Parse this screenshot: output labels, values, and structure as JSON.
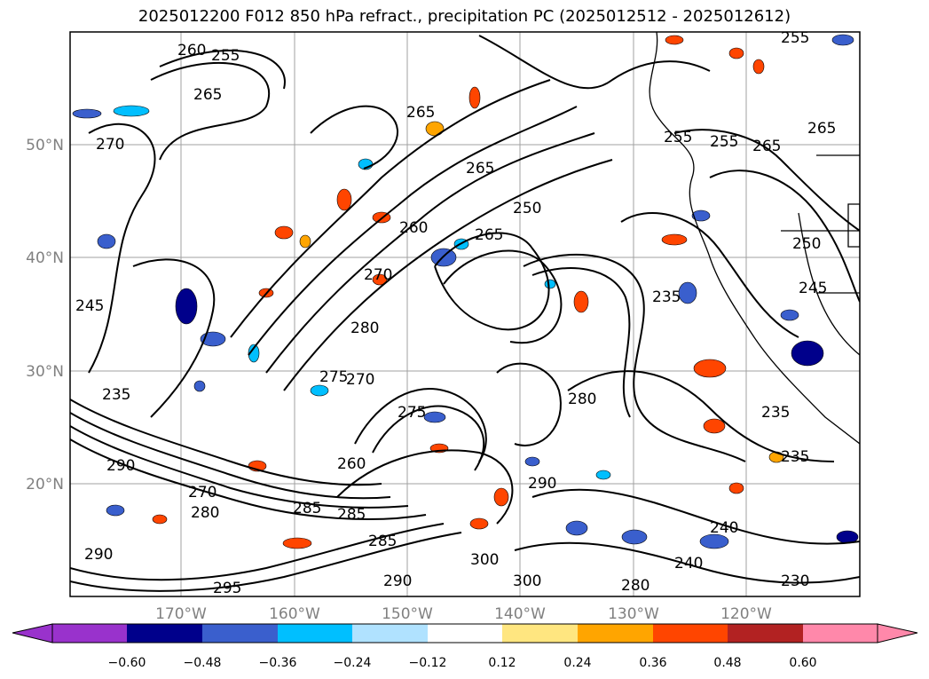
{
  "title": "2025012200 F012 850 hPa refract., precipitation PC (2025012512 - 2025012612)",
  "map": {
    "lat_labels": [
      "50°N",
      "40°N",
      "30°N",
      "20°N"
    ],
    "lon_labels": [
      "170°W",
      "160°W",
      "150°W",
      "140°W",
      "130°W",
      "120°W"
    ],
    "contour_labels": [
      "260",
      "255",
      "265",
      "270",
      "265",
      "265",
      "255",
      "265",
      "265",
      "255",
      "250",
      "265",
      "260",
      "250",
      "245",
      "270",
      "280",
      "275",
      "270",
      "235",
      "275",
      "235",
      "290",
      "280",
      "260",
      "285",
      "290",
      "235",
      "280",
      "285",
      "270",
      "290",
      "235",
      "300",
      "240",
      "280",
      "295",
      "290",
      "300",
      "285",
      "255",
      "245",
      "240",
      "230"
    ]
  },
  "colorbar": {
    "tick_labels": [
      "−0.60",
      "−0.48",
      "−0.36",
      "−0.24",
      "−0.12",
      "0.12",
      "0.24",
      "0.36",
      "0.48",
      "0.60"
    ],
    "colors": [
      "#9932cc",
      "#00008b",
      "#3a5fcd",
      "#00bfff",
      "#b0e2ff",
      "#ffffff",
      "#ffe680",
      "#ffa500",
      "#ff4500",
      "#b22222",
      "#ff88aa"
    ]
  }
}
